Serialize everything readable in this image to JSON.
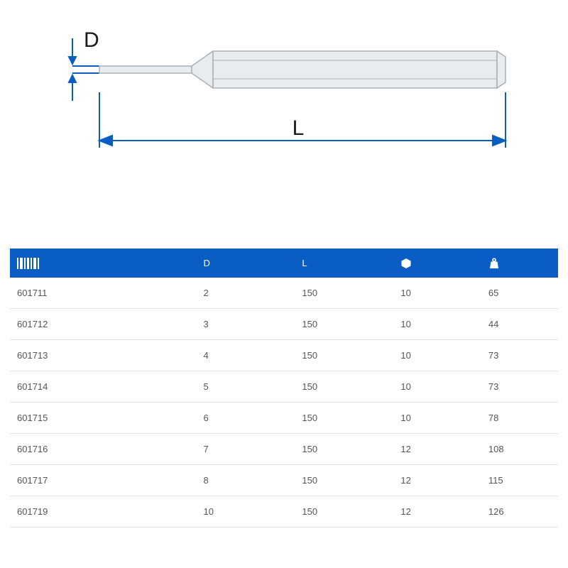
{
  "diagram": {
    "stroke_color": "#0a5dc2",
    "label_D": "D",
    "label_L": "L",
    "body_fill": "#e8ecef",
    "body_stroke": "#a8b0b8"
  },
  "table": {
    "header_bg": "#0a5dc2",
    "header_fg": "#ffffff",
    "row_border": "#e3e3e3",
    "cell_color": "#555555",
    "columns": {
      "code_icon": "barcode-icon",
      "D": "D",
      "L": "L",
      "hex_icon": "hexagon-icon",
      "weight_icon": "weight-icon"
    },
    "rows": [
      {
        "code": "601711",
        "D": "2",
        "L": "150",
        "hex": "10",
        "wt": "65"
      },
      {
        "code": "601712",
        "D": "3",
        "L": "150",
        "hex": "10",
        "wt": "44"
      },
      {
        "code": "601713",
        "D": "4",
        "L": "150",
        "hex": "10",
        "wt": "73"
      },
      {
        "code": "601714",
        "D": "5",
        "L": "150",
        "hex": "10",
        "wt": "73"
      },
      {
        "code": "601715",
        "D": "6",
        "L": "150",
        "hex": "10",
        "wt": "78"
      },
      {
        "code": "601716",
        "D": "7",
        "L": "150",
        "hex": "12",
        "wt": "108"
      },
      {
        "code": "601717",
        "D": "8",
        "L": "150",
        "hex": "12",
        "wt": "115"
      },
      {
        "code": "601719",
        "D": "10",
        "L": "150",
        "hex": "12",
        "wt": "126"
      }
    ]
  }
}
